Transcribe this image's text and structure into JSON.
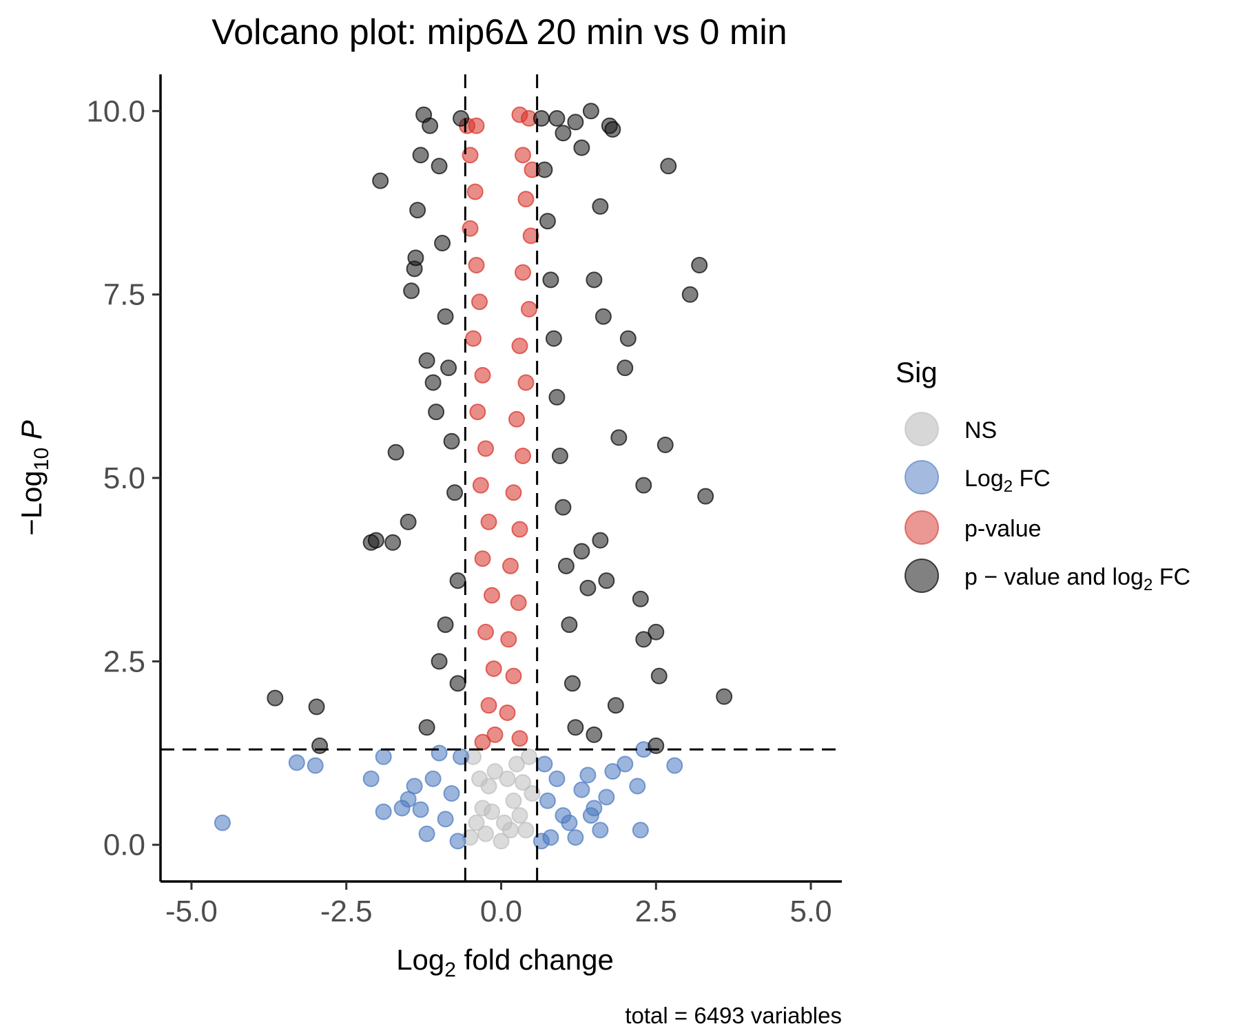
{
  "chart_data": {
    "type": "scatter",
    "title": "Volcano plot: mip6Δ 20 min vs 0 min",
    "xlabel": "Log2 fold change",
    "ylabel": "−Log10 P",
    "caption": "total = 6493 variables",
    "xlim": [
      -5.5,
      5.5
    ],
    "ylim": [
      -0.5,
      10.5
    ],
    "xticks": [
      -5.0,
      -2.5,
      0.0,
      2.5,
      5.0
    ],
    "xtick_labels": [
      "-5.0",
      "-2.5",
      "0.0",
      "2.5",
      "5.0"
    ],
    "yticks": [
      0.0,
      2.5,
      5.0,
      7.5,
      10.0
    ],
    "ytick_labels": [
      "0.0",
      "2.5",
      "5.0",
      "7.5",
      "10.0"
    ],
    "fc_cutoff": 0.58,
    "p_cutoff": 1.3,
    "grid": false,
    "legend": {
      "title": "Sig",
      "placement": "right",
      "entries": [
        {
          "label": "NS",
          "color": "#bdbdbd"
        },
        {
          "label": "Log2 FC",
          "color": "#4a78c0"
        },
        {
          "label": "p-value",
          "color": "#d73027"
        },
        {
          "label": "p − value and log2 FC",
          "color": "#1a1a1a"
        }
      ]
    },
    "series": [
      {
        "name": "NS",
        "color": "#bdbdbd",
        "points": [
          [
            -0.5,
            0.1
          ],
          [
            -0.4,
            0.3
          ],
          [
            -0.3,
            0.5
          ],
          [
            -0.2,
            0.8
          ],
          [
            -0.1,
            1.0
          ],
          [
            0.0,
            0.05
          ],
          [
            0.1,
            0.9
          ],
          [
            0.2,
            0.6
          ],
          [
            0.3,
            0.4
          ],
          [
            0.4,
            0.2
          ],
          [
            0.5,
            0.7
          ],
          [
            -0.45,
            1.2
          ],
          [
            0.45,
            1.2
          ],
          [
            0.05,
            0.3
          ],
          [
            -0.25,
            0.15
          ],
          [
            0.25,
            1.1
          ],
          [
            -0.35,
            0.9
          ],
          [
            0.35,
            0.85
          ],
          [
            -0.15,
            0.45
          ],
          [
            0.15,
            0.2
          ]
        ]
      },
      {
        "name": "Log2 FC",
        "color": "#4a78c0",
        "points": [
          [
            -4.5,
            0.3
          ],
          [
            -3.3,
            1.12
          ],
          [
            -3.0,
            1.08
          ],
          [
            -2.1,
            0.9
          ],
          [
            -1.9,
            1.2
          ],
          [
            -1.9,
            0.45
          ],
          [
            -1.6,
            0.5
          ],
          [
            -1.5,
            0.62
          ],
          [
            -1.4,
            0.8
          ],
          [
            -1.3,
            0.48
          ],
          [
            -1.2,
            0.15
          ],
          [
            -1.1,
            0.9
          ],
          [
            -0.9,
            0.35
          ],
          [
            -0.8,
            0.7
          ],
          [
            -0.7,
            0.05
          ],
          [
            -0.65,
            1.2
          ],
          [
            -1.0,
            1.25
          ],
          [
            0.65,
            0.05
          ],
          [
            0.7,
            1.1
          ],
          [
            0.75,
            0.6
          ],
          [
            0.8,
            0.1
          ],
          [
            0.9,
            0.9
          ],
          [
            1.0,
            0.4
          ],
          [
            1.1,
            0.3
          ],
          [
            1.2,
            0.1
          ],
          [
            1.3,
            0.75
          ],
          [
            1.4,
            0.95
          ],
          [
            1.5,
            0.5
          ],
          [
            1.6,
            0.2
          ],
          [
            1.7,
            0.65
          ],
          [
            1.8,
            1.0
          ],
          [
            2.0,
            1.1
          ],
          [
            2.2,
            0.8
          ],
          [
            2.25,
            0.2
          ],
          [
            2.3,
            1.3
          ],
          [
            2.8,
            1.08
          ],
          [
            1.45,
            0.4
          ]
        ]
      },
      {
        "name": "p-value",
        "color": "#d73027",
        "points": [
          [
            -0.55,
            9.8
          ],
          [
            -0.4,
            9.8
          ],
          [
            -0.5,
            9.4
          ],
          [
            -0.42,
            8.9
          ],
          [
            -0.5,
            8.4
          ],
          [
            -0.4,
            7.9
          ],
          [
            -0.35,
            7.4
          ],
          [
            -0.45,
            6.9
          ],
          [
            -0.3,
            6.4
          ],
          [
            -0.38,
            5.9
          ],
          [
            -0.25,
            5.4
          ],
          [
            -0.33,
            4.9
          ],
          [
            -0.2,
            4.4
          ],
          [
            -0.3,
            3.9
          ],
          [
            -0.15,
            3.4
          ],
          [
            -0.25,
            2.9
          ],
          [
            -0.12,
            2.4
          ],
          [
            -0.2,
            1.9
          ],
          [
            -0.1,
            1.5
          ],
          [
            -0.3,
            1.4
          ],
          [
            0.3,
            9.95
          ],
          [
            0.45,
            9.9
          ],
          [
            0.35,
            9.4
          ],
          [
            0.5,
            9.2
          ],
          [
            0.4,
            8.8
          ],
          [
            0.48,
            8.3
          ],
          [
            0.35,
            7.8
          ],
          [
            0.45,
            7.3
          ],
          [
            0.3,
            6.8
          ],
          [
            0.4,
            6.3
          ],
          [
            0.25,
            5.8
          ],
          [
            0.35,
            5.3
          ],
          [
            0.2,
            4.8
          ],
          [
            0.3,
            4.3
          ],
          [
            0.15,
            3.8
          ],
          [
            0.28,
            3.3
          ],
          [
            0.12,
            2.8
          ],
          [
            0.2,
            2.3
          ],
          [
            0.1,
            1.8
          ],
          [
            0.3,
            1.45
          ]
        ]
      },
      {
        "name": "p − value and log2 FC",
        "color": "#1a1a1a",
        "points": [
          [
            -3.65,
            2.0
          ],
          [
            -2.98,
            1.88
          ],
          [
            -2.93,
            1.35
          ],
          [
            -2.1,
            4.12
          ],
          [
            -2.02,
            4.15
          ],
          [
            -1.95,
            9.05
          ],
          [
            -1.75,
            4.12
          ],
          [
            -1.7,
            5.35
          ],
          [
            -1.5,
            4.4
          ],
          [
            -1.45,
            7.55
          ],
          [
            -1.4,
            7.85
          ],
          [
            -1.38,
            8.0
          ],
          [
            -1.35,
            8.65
          ],
          [
            -1.3,
            9.4
          ],
          [
            -1.2,
            6.6
          ],
          [
            -1.1,
            6.3
          ],
          [
            -1.05,
            5.9
          ],
          [
            -1.0,
            9.25
          ],
          [
            -0.95,
            8.2
          ],
          [
            -0.9,
            7.2
          ],
          [
            -0.85,
            6.5
          ],
          [
            -0.8,
            5.5
          ],
          [
            -0.75,
            4.8
          ],
          [
            -0.7,
            3.6
          ],
          [
            -0.7,
            2.2
          ],
          [
            -0.65,
            9.9
          ],
          [
            -1.25,
            9.95
          ],
          [
            -1.15,
            9.8
          ],
          [
            -0.9,
            3.0
          ],
          [
            -1.0,
            2.5
          ],
          [
            -1.2,
            1.6
          ],
          [
            0.65,
            9.9
          ],
          [
            0.7,
            9.2
          ],
          [
            0.75,
            8.5
          ],
          [
            0.8,
            7.7
          ],
          [
            0.85,
            6.9
          ],
          [
            0.9,
            6.1
          ],
          [
            0.95,
            5.3
          ],
          [
            1.0,
            4.6
          ],
          [
            1.05,
            3.8
          ],
          [
            1.1,
            3.0
          ],
          [
            1.15,
            2.2
          ],
          [
            1.2,
            1.6
          ],
          [
            1.3,
            9.5
          ],
          [
            1.45,
            10.0
          ],
          [
            1.75,
            9.8
          ],
          [
            1.8,
            9.75
          ],
          [
            2.7,
            9.25
          ],
          [
            1.6,
            8.7
          ],
          [
            1.5,
            7.7
          ],
          [
            1.65,
            7.2
          ],
          [
            3.2,
            7.9
          ],
          [
            3.05,
            7.5
          ],
          [
            2.05,
            6.9
          ],
          [
            2.0,
            6.5
          ],
          [
            1.9,
            5.55
          ],
          [
            2.3,
            4.9
          ],
          [
            2.65,
            5.45
          ],
          [
            3.3,
            4.75
          ],
          [
            2.25,
            3.35
          ],
          [
            2.5,
            2.9
          ],
          [
            2.3,
            2.8
          ],
          [
            2.55,
            2.3
          ],
          [
            3.6,
            2.02
          ],
          [
            1.85,
            1.9
          ],
          [
            2.5,
            1.35
          ],
          [
            1.5,
            1.5
          ],
          [
            1.4,
            3.5
          ],
          [
            1.3,
            4.0
          ],
          [
            1.7,
            3.6
          ],
          [
            1.6,
            4.15
          ],
          [
            0.9,
            9.9
          ],
          [
            1.0,
            9.7
          ],
          [
            1.2,
            9.85
          ]
        ]
      }
    ]
  }
}
